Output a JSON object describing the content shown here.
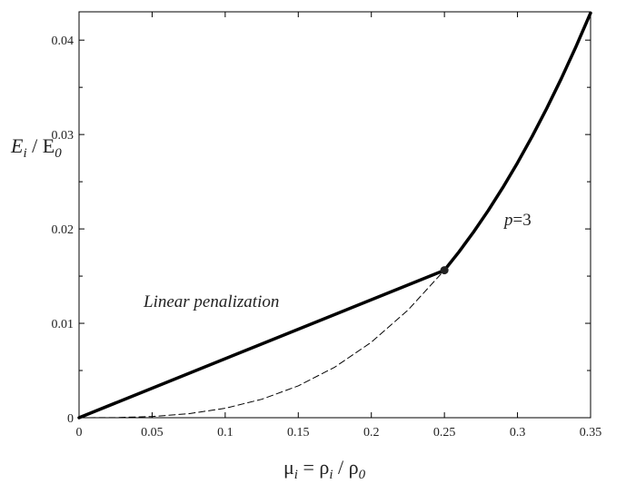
{
  "chart_data": {
    "type": "line",
    "xlabel": {
      "mu": "μ",
      "i1": "i",
      "eq": " = ρ",
      "i2": "i",
      "slash": " / ρ",
      "zero": "0"
    },
    "ylabel": {
      "E1": "E",
      "i": "i",
      "slash": " / E",
      "zero": "0"
    },
    "xlim": [
      0,
      0.35
    ],
    "ylim": [
      0,
      0.043
    ],
    "x_ticks": [
      0,
      0.05,
      0.1,
      0.15,
      0.2,
      0.25,
      0.3,
      0.35
    ],
    "x_tick_labels": [
      "0",
      "0.05",
      "0.1",
      "0.15",
      "0.2",
      "0.25",
      "0.3",
      "0.35"
    ],
    "y_ticks": [
      0,
      0.01,
      0.02,
      0.03,
      0.04
    ],
    "y_tick_labels": [
      "0",
      "0.01",
      "0.02",
      "0.03",
      "0.04"
    ],
    "grid": false,
    "annotations": {
      "linear": "Linear penalization",
      "p_italic": "p",
      "p_rest": "=3"
    },
    "series": [
      {
        "style": "solid-thick",
        "x": [
          0,
          0.25
        ],
        "y": [
          0,
          0.015625
        ]
      },
      {
        "style": "solid-thick",
        "x": [
          0.25,
          0.26,
          0.27,
          0.28,
          0.29,
          0.3,
          0.31,
          0.32,
          0.33,
          0.34,
          0.35
        ],
        "y": [
          0.015625,
          0.017576,
          0.019683,
          0.021952,
          0.024389,
          0.027,
          0.029791,
          0.032768,
          0.035937,
          0.039304,
          0.042875
        ]
      },
      {
        "style": "dashed-thin",
        "x": [
          0,
          0.025,
          0.05,
          0.075,
          0.1,
          0.125,
          0.15,
          0.175,
          0.2,
          0.225,
          0.25
        ],
        "y": [
          0,
          1.56e-05,
          0.000125,
          0.000422,
          0.001,
          0.001953,
          0.003375,
          0.005359,
          0.008,
          0.011391,
          0.015625
        ]
      }
    ],
    "markers": [
      {
        "x": 0.25,
        "y": 0.015625
      }
    ]
  }
}
